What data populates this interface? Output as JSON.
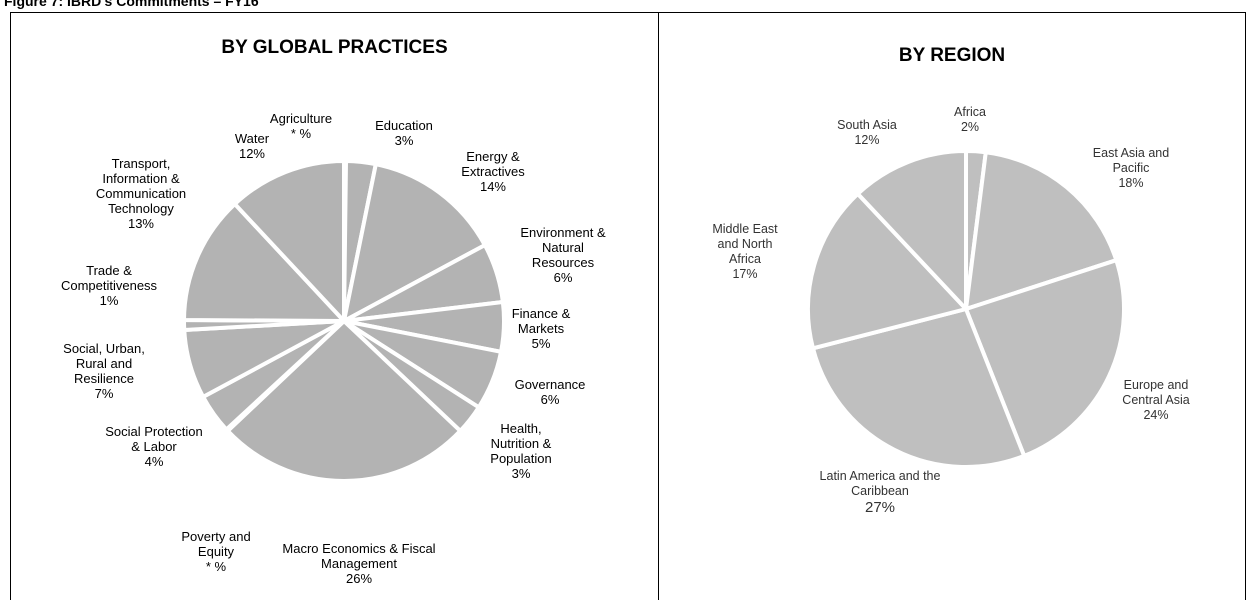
{
  "title": "Figure 7: IBRD's Commitments – FY16",
  "chart_data": [
    {
      "type": "pie",
      "title": "BY GLOBAL PRACTICES",
      "color": "#b3b3b3",
      "categories": [
        "Agriculture",
        "Education",
        "Energy &\nExtractives",
        "Environment &\nNatural\nResources",
        "Finance &\nMarkets",
        "Governance",
        "Health,\nNutrition &\nPopulation",
        "Macro Economics & Fiscal\nManagement",
        "Poverty and\nEquity",
        "Social Protection\n& Labor",
        "Social, Urban,\nRural and\nResilience",
        "Trade &\nCompetitiveness",
        "Transport,\nInformation &\nCommunication\nTechnology",
        "Water"
      ],
      "values": [
        0.2,
        3,
        14,
        6,
        5,
        6,
        3,
        26,
        0.2,
        4,
        7,
        1,
        13,
        12
      ],
      "value_labels": [
        "* %",
        "3%",
        "14%",
        "6%",
        "5%",
        "6%",
        "3%",
        "26%",
        "* %",
        "4%",
        "7%",
        "1%",
        "13%",
        "12%"
      ]
    },
    {
      "type": "pie",
      "title": "BY REGION",
      "color": "#bfbfbf",
      "categories": [
        "Africa",
        "East Asia and\nPacific",
        "Europe and\nCentral Asia",
        "Latin America and the\nCaribbean",
        "Middle East\nand North\nAfrica",
        "South Asia"
      ],
      "values": [
        2,
        18,
        24,
        27,
        17,
        12
      ],
      "value_labels": [
        "2%",
        "18%",
        "24%",
        "27%",
        "17%",
        "12%"
      ]
    }
  ]
}
